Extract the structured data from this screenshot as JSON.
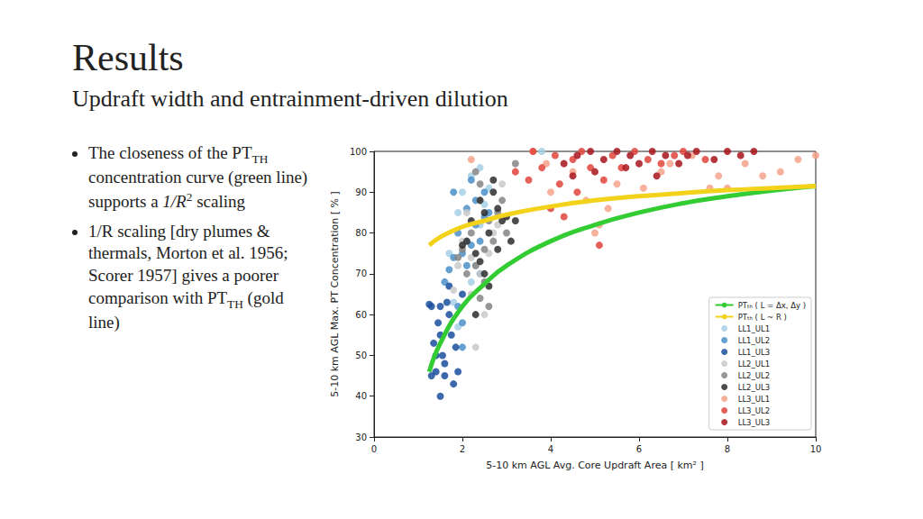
{
  "slide": {
    "title": "Results",
    "subtitle": "Updraft width and entrainment-driven dilution",
    "bullets": [
      [
        {
          "text": "The closeness of the PT"
        },
        {
          "sub": "TH"
        },
        {
          "text": " concentration curve (green line) supports a "
        },
        {
          "math": "1/R"
        },
        {
          "sup": "2"
        },
        {
          "text": " scaling"
        }
      ],
      [
        {
          "text": "1/R scaling [dry plumes & thermals, Morton et al. 1956; Scorer 1957] gives a poorer comparison with PT"
        },
        {
          "sub": "TH"
        },
        {
          "text": " (gold line)"
        }
      ]
    ]
  },
  "chart_data": {
    "type": "scatter",
    "xlabel": "5-10 km AGL Avg. Core Updraft Area [ km² ]",
    "ylabel": "5-10 km AGL Max. PT Concentration [ % ]",
    "xlim": [
      0,
      10
    ],
    "ylim": [
      30,
      100
    ],
    "xticks": [
      0,
      2,
      4,
      6,
      8,
      10
    ],
    "yticks": [
      30,
      40,
      50,
      60,
      70,
      80,
      90,
      100
    ],
    "grid": false,
    "legend": "lower right",
    "series": [
      {
        "name": "PTₜₕ ( L = Δx, Δy )",
        "type": "line",
        "line_style": "solid",
        "color": "#33cc33",
        "x": [
          1.25,
          1.5,
          2,
          2.5,
          3,
          4,
          5,
          6,
          7,
          8,
          9,
          10
        ],
        "values": [
          46,
          53,
          62,
          67.5,
          72,
          78,
          82,
          85,
          87.3,
          89,
          90.4,
          91.5
        ]
      },
      {
        "name": "PTₜₕ ( L ~ R )",
        "type": "line",
        "line_style": "solid",
        "color": "#f2d21b",
        "x": [
          1.25,
          1.5,
          2,
          2.5,
          3,
          4,
          5,
          6,
          7,
          8,
          9,
          10
        ],
        "values": [
          77,
          79,
          81.5,
          83,
          84.5,
          86.5,
          88,
          89,
          89.8,
          90.5,
          91,
          91.5
        ]
      },
      {
        "name": "LL1_UL1",
        "type": "scatter",
        "marker": "circle",
        "color": "#a6cfe6",
        "x": [
          2.0,
          2.2,
          1.9,
          2.4,
          1.7,
          2.1,
          2.3,
          1.8,
          2.5,
          2.6,
          3.8,
          2.2,
          1.9,
          2.4
        ],
        "values": [
          90,
          94,
          85,
          82,
          75,
          78,
          72,
          63,
          87,
          91,
          100,
          68,
          57,
          96
        ]
      },
      {
        "name": "LL1_UL2",
        "type": "scatter",
        "marker": "circle",
        "color": "#4a8fc9",
        "x": [
          1.8,
          2.2,
          2.3,
          1.9,
          2.0,
          2.1,
          1.7,
          2.4,
          2.5,
          1.6,
          2.0,
          1.9,
          2.3,
          2.2,
          2.6,
          2.1,
          1.8,
          2.4,
          2.0,
          2.5
        ],
        "values": [
          90,
          93,
          88,
          80,
          75,
          72,
          71,
          78,
          84,
          68,
          58,
          62,
          82,
          77,
          85,
          86,
          74,
          70,
          52,
          90
        ]
      },
      {
        "name": "LL1_UL3",
        "type": "scatter",
        "marker": "circle",
        "color": "#1a4f9c",
        "x": [
          1.3,
          1.4,
          1.5,
          1.35,
          1.5,
          1.6,
          1.3,
          1.7,
          1.8,
          1.9,
          1.55,
          1.45,
          1.65,
          1.75,
          2.0,
          1.6,
          1.4,
          1.7,
          1.85,
          1.5,
          1.25
        ],
        "values": [
          45,
          46,
          40,
          53,
          55,
          45,
          62,
          60,
          43,
          46,
          50,
          58,
          63,
          55,
          65,
          48,
          50,
          67,
          52,
          62,
          62.5
        ]
      },
      {
        "name": "LL2_UL1",
        "type": "scatter",
        "marker": "circle",
        "color": "#c9c9c9",
        "x": [
          2.2,
          2.4,
          1.9,
          2.6,
          2.3,
          2.0,
          2.7,
          2.5,
          2.1,
          2.8,
          2.4,
          2.2,
          1.8,
          2.9
        ],
        "values": [
          65,
          70,
          72,
          75,
          52,
          78,
          80,
          60,
          85,
          82,
          88,
          74,
          66,
          92
        ]
      },
      {
        "name": "LL2_UL2",
        "type": "scatter",
        "marker": "circle",
        "color": "#858585",
        "x": [
          2.2,
          2.5,
          2.3,
          2.6,
          2.1,
          2.8,
          2.4,
          2.7,
          2.0,
          3.0,
          2.5,
          1.9,
          2.3,
          2.6,
          2.9,
          3.2,
          2.4
        ],
        "values": [
          80,
          76,
          72,
          83,
          70,
          85,
          92,
          78,
          76,
          80,
          68,
          74,
          95,
          62,
          88,
          97,
          64
        ]
      },
      {
        "name": "LL2_UL3",
        "type": "scatter",
        "marker": "circle",
        "color": "#2d2d2d",
        "x": [
          2.2,
          2.4,
          2.5,
          2.7,
          2.3,
          2.6,
          2.8,
          3.0,
          2.1,
          2.5,
          2.9,
          2.6,
          2.4,
          3.2,
          2.0,
          2.7,
          3.1,
          2.3,
          2.8
        ],
        "values": [
          83,
          88,
          85,
          90,
          75,
          80,
          86,
          84,
          78,
          70,
          83,
          67,
          73,
          83,
          77,
          93,
          78,
          60,
          76
        ]
      },
      {
        "name": "LL3_UL1",
        "type": "scatter",
        "marker": "circle",
        "color": "#f5a28a",
        "x": [
          2.2,
          3.6,
          4.0,
          4.5,
          5.1,
          5.3,
          5.5,
          6.1,
          6.7,
          7.2,
          7.8,
          8.0,
          8.8,
          9.2,
          9.6,
          10,
          4.8,
          5.0,
          6.5,
          3.9,
          8.4,
          7.6
        ],
        "values": [
          98,
          100,
          90,
          95,
          82,
          86,
          92,
          91,
          97,
          99,
          94,
          91,
          94,
          95,
          98,
          99,
          88,
          80,
          95,
          97,
          97,
          91
        ]
      },
      {
        "name": "LL3_UL2",
        "type": "scatter",
        "marker": "circle",
        "color": "#e0443c",
        "x": [
          3.2,
          3.5,
          3.8,
          4.0,
          4.2,
          4.5,
          4.3,
          4.6,
          4.9,
          5.2,
          5.1,
          5.6,
          5.9,
          6.2,
          6.5,
          7.0,
          7.5,
          4.1,
          4.7,
          5.4,
          3.6,
          6.8
        ],
        "values": [
          95,
          93,
          96,
          86,
          92,
          98,
          84,
          90,
          96,
          93,
          77,
          96,
          100,
          98,
          97,
          100,
          98,
          99,
          100,
          99,
          100,
          99
        ]
      },
      {
        "name": "LL3_UL3",
        "type": "scatter",
        "marker": "circle",
        "color": "#a8141c",
        "x": [
          4.3,
          4.6,
          4.9,
          5.2,
          5.5,
          5.8,
          6.0,
          6.3,
          6.6,
          6.9,
          7.3,
          7.7,
          8.0,
          8.3,
          5.0,
          4.5,
          5.7,
          6.4,
          7.1,
          8.6
        ],
        "values": [
          97,
          99,
          100,
          98,
          100,
          99,
          97,
          100,
          99,
          97,
          100,
          98,
          100,
          99,
          95,
          94,
          96,
          94,
          99,
          100
        ]
      }
    ]
  }
}
